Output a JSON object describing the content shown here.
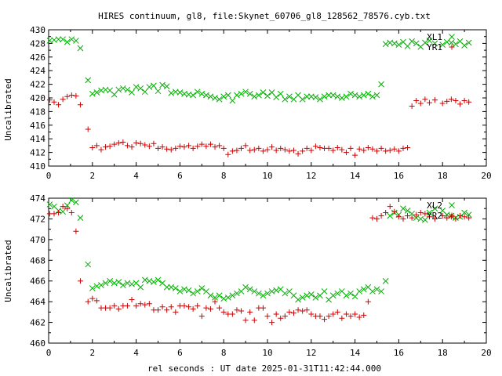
{
  "title": "HIRES continuum, gl8, file:Skynet_60706_gl8_128562_78576.cyb.txt",
  "xlabel": "rel seconds : UT date 2025-01-31T11:42:44.000",
  "colors": {
    "red_series": "#d00000",
    "green_series": "#00b000",
    "axis": "#000000"
  },
  "chart_data": [
    {
      "type": "scatter",
      "ylabel": "Uncalibrated",
      "xlim": [
        0,
        20
      ],
      "ylim": [
        410,
        430
      ],
      "xticks": [
        "0",
        "2",
        "4",
        "6",
        "8",
        "10",
        "12",
        "14",
        "16",
        "18",
        "20"
      ],
      "yticks": [
        "410",
        "412",
        "414",
        "416",
        "418",
        "420",
        "422",
        "424",
        "426",
        "428",
        "430"
      ],
      "series": [
        {
          "name": "XL1",
          "marker": "x",
          "color": "#00b000",
          "x": [
            0.05,
            0.25,
            0.45,
            0.65,
            0.85,
            1.05,
            1.25,
            1.45,
            1.8,
            2.0,
            2.2,
            2.4,
            2.6,
            2.8,
            3.0,
            3.2,
            3.4,
            3.6,
            3.8,
            4.0,
            4.2,
            4.4,
            4.6,
            4.8,
            5.0,
            5.2,
            5.4,
            5.6,
            5.8,
            6.0,
            6.2,
            6.4,
            6.6,
            6.8,
            7.0,
            7.2,
            7.4,
            7.6,
            7.8,
            8.0,
            8.2,
            8.4,
            8.6,
            8.8,
            9.0,
            9.2,
            9.4,
            9.6,
            9.8,
            10.0,
            10.2,
            10.4,
            10.6,
            10.8,
            11.0,
            11.2,
            11.4,
            11.6,
            11.8,
            12.0,
            12.2,
            12.4,
            12.6,
            12.8,
            13.0,
            13.2,
            13.4,
            13.6,
            13.8,
            14.0,
            14.2,
            14.4,
            14.6,
            14.8,
            15.0,
            15.2,
            15.4,
            15.6,
            15.8,
            16.0,
            16.2,
            16.4,
            16.6,
            16.8,
            17.0,
            17.2,
            17.4,
            17.65,
            18.0,
            18.2,
            18.4,
            18.6,
            18.8,
            19.0,
            19.2
          ],
          "y": [
            428.4,
            428.5,
            428.6,
            428.6,
            428.2,
            428.6,
            428.4,
            427.3,
            422.6,
            420.6,
            420.8,
            421.1,
            421.2,
            421.1,
            420.5,
            421.2,
            421.4,
            421.2,
            420.8,
            421.6,
            421.4,
            420.9,
            421.6,
            421.8,
            421.0,
            421.9,
            421.7,
            420.7,
            420.9,
            420.8,
            420.6,
            420.5,
            420.4,
            420.9,
            420.6,
            420.4,
            420.2,
            420.0,
            419.8,
            420.2,
            420.4,
            419.6,
            420.4,
            420.6,
            420.9,
            420.6,
            420.2,
            420.4,
            420.8,
            420.3,
            420.8,
            420.1,
            420.6,
            419.8,
            420.2,
            419.8,
            420.4,
            419.8,
            420.2,
            420.2,
            420.1,
            419.8,
            420.2,
            420.4,
            420.4,
            420.2,
            420.0,
            420.2,
            420.6,
            420.4,
            420.2,
            420.4,
            420.6,
            420.2,
            420.4,
            422.0,
            427.9,
            428.1,
            428.0,
            427.8,
            428.2,
            427.6,
            428.3,
            428.0,
            427.5,
            428.1,
            428.4,
            428.0,
            427.8,
            428.2,
            428.1,
            427.9,
            428.3,
            427.7,
            428.1
          ]
        },
        {
          "name": "YR1",
          "marker": "+",
          "color": "#d00000",
          "x": [
            0.05,
            0.25,
            0.45,
            0.65,
            0.85,
            1.05,
            1.25,
            1.45,
            1.8,
            2.0,
            2.2,
            2.4,
            2.6,
            2.8,
            3.0,
            3.2,
            3.4,
            3.6,
            3.8,
            4.0,
            4.2,
            4.4,
            4.6,
            4.8,
            5.0,
            5.2,
            5.4,
            5.6,
            5.8,
            6.0,
            6.2,
            6.4,
            6.6,
            6.8,
            7.0,
            7.2,
            7.4,
            7.6,
            7.8,
            8.0,
            8.2,
            8.4,
            8.6,
            8.8,
            9.0,
            9.2,
            9.4,
            9.6,
            9.8,
            10.0,
            10.2,
            10.4,
            10.6,
            10.8,
            11.0,
            11.2,
            11.4,
            11.6,
            11.8,
            12.0,
            12.2,
            12.4,
            12.6,
            12.8,
            13.0,
            13.2,
            13.4,
            13.6,
            13.8,
            14.0,
            14.2,
            14.4,
            14.6,
            14.8,
            15.0,
            15.2,
            15.4,
            15.6,
            15.8,
            16.0,
            16.2,
            16.4,
            16.6,
            16.8,
            17.0,
            17.2,
            17.4,
            17.65,
            18.0,
            18.2,
            18.4,
            18.6,
            18.8,
            19.0,
            19.2
          ],
          "y": [
            419.7,
            419.4,
            419.0,
            419.8,
            420.2,
            420.4,
            420.3,
            419.0,
            415.4,
            412.7,
            413.0,
            412.4,
            412.8,
            412.9,
            413.2,
            413.4,
            413.5,
            413.0,
            412.8,
            413.4,
            413.3,
            413.1,
            412.9,
            413.3,
            412.6,
            412.8,
            412.5,
            412.4,
            412.6,
            412.9,
            412.8,
            413.0,
            412.6,
            412.9,
            413.2,
            412.9,
            413.2,
            412.8,
            413.0,
            412.6,
            411.7,
            412.2,
            412.3,
            412.6,
            413.0,
            412.3,
            412.4,
            412.6,
            412.2,
            412.4,
            412.8,
            412.3,
            412.6,
            412.4,
            412.2,
            412.3,
            411.8,
            412.2,
            412.6,
            412.3,
            412.9,
            412.7,
            412.6,
            412.6,
            412.3,
            412.7,
            412.4,
            412.0,
            412.6,
            411.6,
            412.5,
            412.3,
            412.7,
            412.5,
            412.2,
            412.6,
            412.2,
            412.3,
            412.5,
            412.2,
            412.6,
            412.7,
            418.8,
            419.6,
            419.2,
            419.8,
            419.3,
            419.7,
            419.2,
            419.5,
            419.8,
            419.6,
            419.1,
            419.6,
            419.4
          ]
        }
      ]
    },
    {
      "type": "scatter",
      "ylabel": "Uncalibrated",
      "xlim": [
        0,
        20
      ],
      "ylim": [
        460,
        474
      ],
      "xticks": [
        "0",
        "2",
        "4",
        "6",
        "8",
        "10",
        "12",
        "14",
        "16",
        "18",
        "20"
      ],
      "yticks": [
        "460",
        "462",
        "464",
        "466",
        "468",
        "470",
        "472",
        "474"
      ],
      "series": [
        {
          "name": "XL2",
          "marker": "x",
          "color": "#00b000",
          "x": [
            0.05,
            0.25,
            0.45,
            0.65,
            0.85,
            1.05,
            1.25,
            1.45,
            1.8,
            2.0,
            2.2,
            2.4,
            2.6,
            2.8,
            3.0,
            3.2,
            3.4,
            3.6,
            3.8,
            4.0,
            4.2,
            4.4,
            4.6,
            4.8,
            5.0,
            5.2,
            5.4,
            5.6,
            5.8,
            6.0,
            6.2,
            6.4,
            6.6,
            6.8,
            7.0,
            7.2,
            7.4,
            7.6,
            7.8,
            8.0,
            8.2,
            8.4,
            8.6,
            8.8,
            9.0,
            9.2,
            9.4,
            9.6,
            9.8,
            10.0,
            10.2,
            10.4,
            10.6,
            10.8,
            11.0,
            11.2,
            11.4,
            11.6,
            11.8,
            12.0,
            12.2,
            12.4,
            12.6,
            12.8,
            13.0,
            13.2,
            13.4,
            13.6,
            13.8,
            14.0,
            14.2,
            14.4,
            14.6,
            14.8,
            15.0,
            15.2,
            15.4,
            15.6,
            15.8,
            16.0,
            16.2,
            16.4,
            16.6,
            16.8,
            17.0,
            17.2,
            17.4,
            17.65,
            18.0,
            18.2,
            18.4,
            18.6,
            18.8,
            19.0,
            19.2
          ],
          "y": [
            473.4,
            473.2,
            472.8,
            472.7,
            473.3,
            473.8,
            473.6,
            472.1,
            467.6,
            465.3,
            465.5,
            465.6,
            465.8,
            466.0,
            465.8,
            465.9,
            465.6,
            465.8,
            465.7,
            465.8,
            465.4,
            466.1,
            466.0,
            465.9,
            466.1,
            465.8,
            465.4,
            465.4,
            465.3,
            465.0,
            465.2,
            465.1,
            464.8,
            465.0,
            465.3,
            465.0,
            464.6,
            464.4,
            464.6,
            464.3,
            464.4,
            464.6,
            464.8,
            465.0,
            465.4,
            465.2,
            465.0,
            464.8,
            464.6,
            464.8,
            465.0,
            465.1,
            465.2,
            464.8,
            465.0,
            464.6,
            464.2,
            464.4,
            464.6,
            464.7,
            464.4,
            464.6,
            465.0,
            464.2,
            464.6,
            464.8,
            465.0,
            464.6,
            464.8,
            464.5,
            465.0,
            465.2,
            465.4,
            465.0,
            465.2,
            465.0,
            466.0,
            472.3,
            472.6,
            472.4,
            473.0,
            472.8,
            472.5,
            472.1,
            472.0,
            471.9,
            472.6,
            473.0,
            472.8,
            472.4,
            472.3,
            472.1,
            472.2,
            472.6,
            472.4
          ]
        },
        {
          "name": "YR2",
          "marker": "+",
          "color": "#d00000",
          "x": [
            0.05,
            0.25,
            0.45,
            0.65,
            0.85,
            1.05,
            1.25,
            1.45,
            1.8,
            2.0,
            2.2,
            2.4,
            2.6,
            2.8,
            3.0,
            3.2,
            3.4,
            3.6,
            3.8,
            4.0,
            4.2,
            4.4,
            4.6,
            4.8,
            5.0,
            5.2,
            5.4,
            5.6,
            5.8,
            6.0,
            6.2,
            6.4,
            6.6,
            6.8,
            7.0,
            7.2,
            7.4,
            7.6,
            7.8,
            8.0,
            8.2,
            8.4,
            8.6,
            8.8,
            9.0,
            9.2,
            9.4,
            9.6,
            9.8,
            10.0,
            10.2,
            10.4,
            10.6,
            10.8,
            11.0,
            11.2,
            11.4,
            11.6,
            11.8,
            12.0,
            12.2,
            12.4,
            12.6,
            12.8,
            13.0,
            13.2,
            13.4,
            13.6,
            13.8,
            14.0,
            14.2,
            14.4,
            14.6,
            14.8,
            15.0,
            15.2,
            15.4,
            15.6,
            15.8,
            16.0,
            16.2,
            16.4,
            16.6,
            16.8,
            17.0,
            17.2,
            17.4,
            17.65,
            18.0,
            18.2,
            18.4,
            18.6,
            18.8,
            19.0,
            19.2
          ],
          "y": [
            472.5,
            472.5,
            472.6,
            473.2,
            473.0,
            472.6,
            470.8,
            466.0,
            464.0,
            464.3,
            464.1,
            463.4,
            463.4,
            463.4,
            463.6,
            463.3,
            463.6,
            463.6,
            464.2,
            463.6,
            463.8,
            463.7,
            463.8,
            463.2,
            463.2,
            463.5,
            463.2,
            463.5,
            463.0,
            463.6,
            463.6,
            463.5,
            463.3,
            463.6,
            462.6,
            463.4,
            463.3,
            464.0,
            463.4,
            463.0,
            462.8,
            462.8,
            463.2,
            463.1,
            462.2,
            463.0,
            462.2,
            463.4,
            463.4,
            462.6,
            462.0,
            462.8,
            462.4,
            462.6,
            463.0,
            462.9,
            463.2,
            463.1,
            463.2,
            462.8,
            462.6,
            462.6,
            462.3,
            462.6,
            462.8,
            463.0,
            462.4,
            462.8,
            462.6,
            462.8,
            462.5,
            462.7,
            464.0,
            472.1,
            472.0,
            472.3,
            472.6,
            473.2,
            472.7,
            472.2,
            472.0,
            472.3,
            472.1,
            472.4,
            472.6,
            472.5,
            472.2,
            472.0,
            472.3,
            472.1,
            472.2,
            472.0,
            472.3,
            472.2,
            472.1
          ]
        }
      ]
    }
  ]
}
